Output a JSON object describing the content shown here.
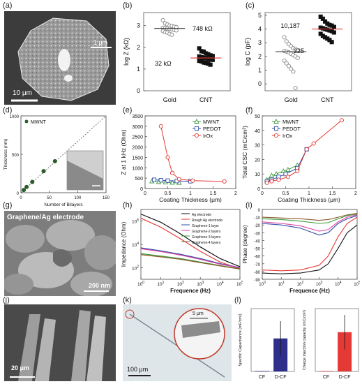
{
  "panel_labels": {
    "a": "(a)",
    "b": "(b)",
    "c": "(c)",
    "d": "(d)",
    "e": "(e)",
    "f": "(f)",
    "g": "(g)",
    "h": "(h)",
    "i": "(i)",
    "j": "(j)",
    "k": "(k)",
    "l": "(l)"
  },
  "micrographs": {
    "a_scale_main": "10 μm",
    "a_scale_inset": "1 μm",
    "g_title": "Graphene/Ag electrode",
    "g_scale": "200 nm",
    "j_scale": "20 μm",
    "k_scale": "100 μm",
    "k_inset_scale": "5 μm"
  },
  "colors": {
    "red": "#e53935",
    "green": "#3a9a3a",
    "blue": "#2f4fa8",
    "gray": "#888888",
    "black": "#111111"
  },
  "chart_data": [
    {
      "id": "b",
      "type": "scatter",
      "ylabel": "log Z (kΩ)",
      "categories": [
        "Gold",
        "CNT"
      ],
      "yticks": [
        0,
        1,
        2,
        3
      ],
      "ylim": [
        0,
        3.6
      ],
      "annotations": [
        "748 kΩ",
        "32 kΩ"
      ],
      "series": [
        {
          "category": "Gold",
          "marker": "open-circle",
          "mean": 2.87,
          "values": [
            3.25,
            3.1,
            3.05,
            3.0,
            2.98,
            2.95,
            2.93,
            2.9,
            2.88,
            2.87,
            2.85,
            2.83,
            2.8,
            2.78,
            2.75,
            2.7,
            2.68,
            2.62,
            2.58
          ]
        },
        {
          "category": "CNT",
          "marker": "filled-square",
          "mean": 1.51,
          "values": [
            1.95,
            1.82,
            1.8,
            1.72,
            1.68,
            1.63,
            1.6,
            1.58,
            1.55,
            1.52,
            1.5,
            1.47,
            1.45,
            1.42,
            1.38,
            1.35,
            1.3,
            1.28,
            1.25,
            1.2
          ]
        }
      ]
    },
    {
      "id": "c",
      "type": "scatter",
      "ylabel": "log C (pF)",
      "categories": [
        "Gold",
        "CNT"
      ],
      "yticks": [
        0,
        1,
        2,
        3,
        4,
        5
      ],
      "ylim": [
        -0.5,
        5.2
      ],
      "annotations": [
        "10,187",
        "225"
      ],
      "series": [
        {
          "category": "Gold",
          "marker": "open-circle",
          "mean": 2.35,
          "values": [
            3.4,
            3.1,
            2.9,
            2.75,
            2.6,
            2.55,
            2.45,
            2.4,
            2.35,
            2.3,
            2.2,
            2.1,
            2.0,
            1.9,
            1.7,
            1.5,
            1.3,
            1.1,
            0.9,
            -0.3
          ]
        },
        {
          "category": "CNT",
          "marker": "filled-square",
          "mean": 4.0,
          "values": [
            4.9,
            4.75,
            4.55,
            4.4,
            4.3,
            4.25,
            4.15,
            4.1,
            4.05,
            4.0,
            3.95,
            3.9,
            3.85,
            3.75,
            3.65,
            3.5,
            3.4,
            3.3,
            3.2,
            3.05
          ]
        }
      ]
    },
    {
      "id": "d",
      "type": "scatter",
      "xlabel": "Number of Bilayers",
      "ylabel": "Thickness (nm)",
      "xlim": [
        0,
        150
      ],
      "ylim": [
        0,
        1000
      ],
      "xticks": [
        0,
        50,
        100,
        150
      ],
      "yticks": [
        0,
        500,
        1000
      ],
      "legend": [
        "MWNT"
      ],
      "series": [
        {
          "name": "MWNT",
          "x": [
            5,
            10,
            20,
            40,
            60
          ],
          "y": [
            35,
            75,
            140,
            280,
            410
          ]
        }
      ]
    },
    {
      "id": "e",
      "type": "line",
      "xlabel": "Coating Thickness (μm)",
      "ylabel": "Z at 1 kHz (Ohm)",
      "xlim": [
        0,
        2.0
      ],
      "ylim": [
        0,
        3500
      ],
      "xticks": [
        0.0,
        0.5,
        1.0,
        1.5,
        2.0
      ],
      "yticks": [
        0,
        500,
        1000,
        1500,
        2000,
        2500,
        3000,
        3500
      ],
      "legend_position": "top-right",
      "series": [
        {
          "name": "MWNT",
          "marker": "triangle",
          "x": [
            0.15,
            0.3,
            0.45,
            0.6,
            0.75
          ],
          "y": [
            350,
            320,
            300,
            290,
            280
          ]
        },
        {
          "name": "PEDOT",
          "marker": "square",
          "x": [
            0.2,
            0.35,
            0.5,
            0.7,
            1.0
          ],
          "y": [
            420,
            400,
            380,
            360,
            350
          ]
        },
        {
          "name": "IrOx",
          "marker": "circle",
          "x": [
            0.35,
            0.5,
            0.6,
            0.75,
            1.05,
            1.75
          ],
          "y": [
            3000,
            1500,
            750,
            450,
            380,
            340
          ]
        }
      ]
    },
    {
      "id": "f",
      "type": "line",
      "xlabel": "Coating Thickness (μm)",
      "ylabel": "Total CSC (mC/cm²)",
      "xlim": [
        0,
        2.0
      ],
      "ylim": [
        0,
        50
      ],
      "xticks": [
        0.0,
        0.5,
        1.0,
        1.5,
        2.0
      ],
      "yticks": [
        0,
        10,
        20,
        30,
        40,
        50
      ],
      "legend_position": "top-left",
      "series": [
        {
          "name": "MWNT",
          "marker": "triangle",
          "x": [
            0.1,
            0.2,
            0.3,
            0.45,
            0.55,
            0.75
          ],
          "y": [
            6,
            9,
            10,
            12,
            13,
            16
          ]
        },
        {
          "name": "PEDOT",
          "marker": "square",
          "x": [
            0.1,
            0.2,
            0.35,
            0.5,
            0.75,
            0.95
          ],
          "y": [
            5,
            6,
            8,
            10,
            14,
            27
          ]
        },
        {
          "name": "IrOx",
          "marker": "circle",
          "x": [
            0.1,
            0.2,
            0.35,
            0.55,
            0.75,
            0.95,
            1.1,
            1.7
          ],
          "y": [
            4,
            5,
            6,
            8,
            12,
            27,
            31,
            47
          ]
        }
      ]
    },
    {
      "id": "h",
      "type": "line",
      "xlabel": "Frequence (Hz)",
      "ylabel": "Impedance (Ohm)",
      "xscale": "log",
      "yscale": "log",
      "xlim": [
        1,
        100000
      ],
      "ylim": [
        10,
        10000000
      ],
      "xticks": [
        1,
        10,
        100,
        1000,
        10000,
        100000
      ],
      "yticks": [
        100,
        10000,
        1000000
      ],
      "legend_position": "top-right",
      "series": [
        {
          "name": "Ag electrode",
          "color": "#111111",
          "x": [
            1,
            10,
            100,
            1000,
            10000,
            100000
          ],
          "y": [
            4000000,
            800000,
            80000,
            6000,
            600,
            120
          ]
        },
        {
          "name": "Rough Ag electrode",
          "color": "#e53935",
          "x": [
            1,
            10,
            100,
            1000,
            10000,
            100000
          ],
          "y": [
            1800000,
            300000,
            30000,
            2500,
            300,
            80
          ]
        },
        {
          "name": "Graphene-1 layer",
          "color": "#2f4fa8",
          "x": [
            1,
            10,
            100,
            1000,
            10000,
            100000
          ],
          "y": [
            5000,
            2800,
            1400,
            600,
            220,
            100
          ]
        },
        {
          "name": "Graphene-2 layers",
          "color": "#e040a0",
          "x": [
            1,
            10,
            100,
            1000,
            10000,
            100000
          ],
          "y": [
            4200,
            2400,
            1200,
            520,
            200,
            95
          ]
        },
        {
          "name": "Graphene-3 layers",
          "color": "#3a9a3a",
          "x": [
            1,
            10,
            100,
            1000,
            10000,
            100000
          ],
          "y": [
            1600,
            1000,
            600,
            300,
            150,
            80
          ]
        },
        {
          "name": "Graphene-4 layers",
          "color": "#8a5a2a",
          "x": [
            1,
            10,
            100,
            1000,
            10000,
            100000
          ],
          "y": [
            1300,
            850,
            520,
            270,
            140,
            75
          ]
        }
      ]
    },
    {
      "id": "i",
      "type": "line",
      "xlabel": "Frequence (Hz)",
      "ylabel": "Phase (degree)",
      "xscale": "log",
      "xlim": [
        1,
        100000
      ],
      "ylim": [
        -90,
        0
      ],
      "xticks": [
        1,
        10,
        100,
        1000,
        10000,
        100000
      ],
      "yticks": [
        0,
        -10,
        -20,
        -30,
        -40,
        -50,
        -60,
        -70,
        -80,
        -90
      ],
      "series": [
        {
          "name": "Ag electrode",
          "color": "#111111",
          "x": [
            1,
            10,
            100,
            1000,
            3000,
            10000,
            30000,
            100000
          ],
          "y": [
            -82,
            -83,
            -82,
            -78,
            -70,
            -50,
            -30,
            -20
          ]
        },
        {
          "name": "Rough Ag electrode",
          "color": "#e53935",
          "x": [
            1,
            10,
            100,
            1000,
            3000,
            10000,
            30000,
            100000
          ],
          "y": [
            -78,
            -79,
            -78,
            -72,
            -60,
            -35,
            -18,
            -10
          ]
        },
        {
          "name": "Graphene-1 layer",
          "color": "#2f4fa8",
          "x": [
            1,
            10,
            100,
            1000,
            3000,
            10000,
            30000,
            100000
          ],
          "y": [
            -18,
            -20,
            -24,
            -33,
            -30,
            -18,
            -12,
            -8
          ]
        },
        {
          "name": "Graphene-2 layers",
          "color": "#e040a0",
          "x": [
            1,
            10,
            100,
            1000,
            3000,
            10000,
            30000,
            100000
          ],
          "y": [
            -16,
            -18,
            -21,
            -28,
            -26,
            -16,
            -10,
            -7
          ]
        },
        {
          "name": "Graphene-3 layers",
          "color": "#3a9a3a",
          "x": [
            1,
            10,
            100,
            1000,
            3000,
            10000,
            30000,
            100000
          ],
          "y": [
            -12,
            -13,
            -15,
            -18,
            -17,
            -12,
            -8,
            -6
          ]
        },
        {
          "name": "Graphene-4 layers",
          "color": "#8a5a2a",
          "x": [
            1,
            10,
            100,
            1000,
            3000,
            10000,
            30000,
            100000
          ],
          "y": [
            -10,
            -11,
            -12,
            -14,
            -13,
            -10,
            -7,
            -5
          ]
        }
      ]
    },
    {
      "id": "l1",
      "type": "bar",
      "ylabel": "Specific Capacitance (mF/cm²)",
      "categories": [
        "CF",
        "D-CF"
      ],
      "values": [
        0.3,
        21
      ],
      "errors": [
        0,
        11
      ],
      "ylim": [
        0,
        40
      ],
      "color": "#2e2f8a"
    },
    {
      "id": "l2",
      "type": "bar",
      "ylabel": "Charge injection capacity (mC/cm²)",
      "categories": [
        "CF",
        "D-CF"
      ],
      "values": [
        0.3,
        25
      ],
      "errors": [
        0,
        11
      ],
      "ylim": [
        0,
        40
      ],
      "color": "#e53935"
    }
  ]
}
